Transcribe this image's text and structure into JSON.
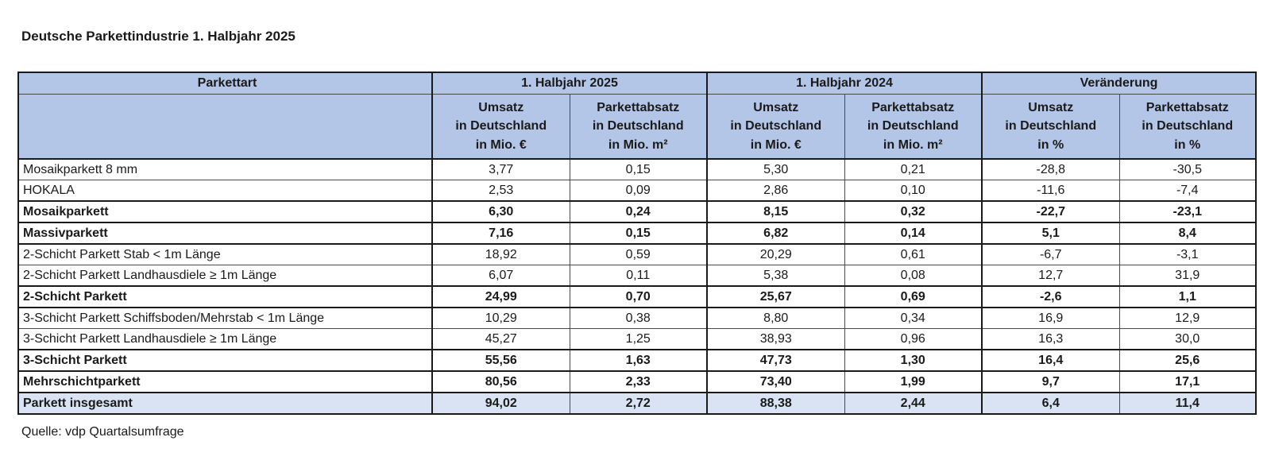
{
  "title": "Deutsche Parkettindustrie 1. Halbjahr 2025",
  "source": "Quelle: vdp Quartalsumfrage",
  "colors": {
    "header_bg": "#b4c6e7",
    "total_row_bg": "#dae3f3",
    "border_dark": "#1a1a1a",
    "border_mid": "#4a4a4a",
    "text": "#1a1a1a",
    "page_bg": "#ffffff"
  },
  "table": {
    "corner_header": "Parkettart",
    "column_groups": [
      {
        "label": "1. Halbjahr 2025",
        "sub_columns": [
          "Umsatz\nin Deutschland\nin Mio. €",
          "Parkettabsatz\nin Deutschland\nin Mio. m²"
        ]
      },
      {
        "label": "1. Halbjahr 2024",
        "sub_columns": [
          "Umsatz\nin Deutschland\nin Mio. €",
          "Parkettabsatz\nin Deutschland\nin Mio. m²"
        ]
      },
      {
        "label": "Veränderung",
        "sub_columns": [
          "Umsatz\nin Deutschland\nin %",
          "Parkettabsatz\nin Deutschland\nin %"
        ]
      }
    ],
    "rows": [
      {
        "label": "Mosaikparkett 8 mm",
        "values": [
          "3,77",
          "0,15",
          "5,30",
          "0,21",
          "-28,8",
          "-30,5"
        ],
        "bold": false,
        "total": false,
        "divider_top": "thick"
      },
      {
        "label": "HOKALA",
        "values": [
          "2,53",
          "0,09",
          "2,86",
          "0,10",
          "-11,6",
          "-7,4"
        ],
        "bold": false,
        "total": false,
        "divider_top": "thin"
      },
      {
        "label": "Mosaikparkett",
        "values": [
          "6,30",
          "0,24",
          "8,15",
          "0,32",
          "-22,7",
          "-23,1"
        ],
        "bold": true,
        "total": false,
        "divider_top": "thick"
      },
      {
        "label": "Massivparkett",
        "values": [
          "7,16",
          "0,15",
          "6,82",
          "0,14",
          "5,1",
          "8,4"
        ],
        "bold": true,
        "total": false,
        "divider_top": "thick"
      },
      {
        "label": "2-Schicht Parkett Stab < 1m Länge",
        "values": [
          "18,92",
          "0,59",
          "20,29",
          "0,61",
          "-6,7",
          "-3,1"
        ],
        "bold": false,
        "total": false,
        "divider_top": "thick"
      },
      {
        "label": "2-Schicht Parkett Landhausdiele ≥ 1m Länge",
        "values": [
          "6,07",
          "0,11",
          "5,38",
          "0,08",
          "12,7",
          "31,9"
        ],
        "bold": false,
        "total": false,
        "divider_top": "thin"
      },
      {
        "label": "2-Schicht Parkett",
        "values": [
          "24,99",
          "0,70",
          "25,67",
          "0,69",
          "-2,6",
          "1,1"
        ],
        "bold": true,
        "total": false,
        "divider_top": "thick"
      },
      {
        "label": "3-Schicht Parkett Schiffsboden/Mehrstab < 1m Länge",
        "values": [
          "10,29",
          "0,38",
          "8,80",
          "0,34",
          "16,9",
          "12,9"
        ],
        "bold": false,
        "total": false,
        "divider_top": "thick"
      },
      {
        "label": "3-Schicht Parkett Landhausdiele ≥ 1m Länge",
        "values": [
          "45,27",
          "1,25",
          "38,93",
          "0,96",
          "16,3",
          "30,0"
        ],
        "bold": false,
        "total": false,
        "divider_top": "thin"
      },
      {
        "label": "3-Schicht Parkett",
        "values": [
          "55,56",
          "1,63",
          "47,73",
          "1,30",
          "16,4",
          "25,6"
        ],
        "bold": true,
        "total": false,
        "divider_top": "thick"
      },
      {
        "label": "Mehrschichtparkett",
        "values": [
          "80,56",
          "2,33",
          "73,40",
          "1,99",
          "9,7",
          "17,1"
        ],
        "bold": true,
        "total": false,
        "divider_top": "thick"
      },
      {
        "label": "Parkett insgesamt",
        "values": [
          "94,02",
          "2,72",
          "88,38",
          "2,44",
          "6,4",
          "11,4"
        ],
        "bold": true,
        "total": true,
        "divider_top": "thick"
      }
    ]
  }
}
